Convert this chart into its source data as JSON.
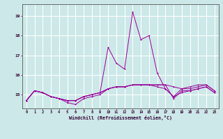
{
  "xlabel": "Windchill (Refroidissement éolien,°C)",
  "background_color": "#cce8e8",
  "grid_color": "#ffffff",
  "line_color": "#990099",
  "hours": [
    0,
    1,
    2,
    3,
    4,
    5,
    6,
    7,
    8,
    9,
    10,
    11,
    12,
    13,
    14,
    15,
    16,
    17,
    18,
    19,
    20,
    21,
    22,
    23
  ],
  "line1": [
    14.7,
    15.2,
    15.1,
    14.9,
    14.8,
    14.7,
    14.7,
    14.9,
    15.0,
    15.1,
    15.3,
    15.4,
    15.4,
    15.5,
    15.5,
    15.5,
    15.5,
    15.5,
    15.4,
    15.3,
    15.3,
    15.4,
    15.5,
    15.2
  ],
  "line2": [
    14.7,
    15.2,
    15.1,
    14.9,
    14.8,
    14.7,
    14.7,
    14.9,
    15.0,
    15.1,
    17.4,
    16.6,
    16.3,
    19.2,
    17.8,
    18.0,
    16.1,
    15.3,
    14.9,
    15.3,
    15.4,
    15.5,
    15.5,
    15.2
  ],
  "line3": [
    14.7,
    15.2,
    15.1,
    14.9,
    14.8,
    14.6,
    14.5,
    14.8,
    14.9,
    15.0,
    15.3,
    15.4,
    15.4,
    15.5,
    15.5,
    15.5,
    15.5,
    15.5,
    14.8,
    15.2,
    15.2,
    15.3,
    15.4,
    15.1
  ],
  "line4": [
    14.7,
    15.2,
    15.1,
    14.9,
    14.8,
    14.7,
    14.7,
    14.9,
    15.0,
    15.1,
    15.3,
    15.4,
    15.4,
    15.5,
    15.5,
    15.5,
    15.4,
    15.3,
    14.9,
    15.1,
    15.2,
    15.3,
    15.4,
    15.1
  ],
  "ylim": [
    14.3,
    19.6
  ],
  "yticks": [
    15,
    16,
    17,
    18,
    19
  ],
  "xtick_labels": [
    "0",
    "1",
    "2",
    "3",
    "4",
    "5",
    "6",
    "7",
    "8",
    "9",
    "10",
    "11",
    "12",
    "13",
    "14",
    "15",
    "16",
    "17",
    "18",
    "19",
    "20",
    "21",
    "22",
    "23"
  ]
}
